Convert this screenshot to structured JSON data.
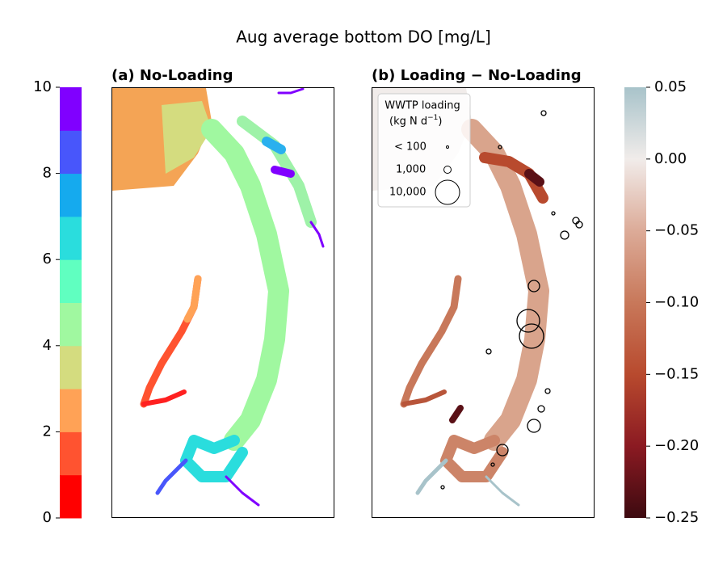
{
  "title": "Aug average bottom DO [mg/L]",
  "panels": [
    {
      "title": "(a) No-Loading"
    },
    {
      "title": "(b) Loading − No-Loading"
    }
  ],
  "legend": {
    "title": "WWTP loading",
    "units": "(kg N d",
    "units_exponent": "−1",
    "units_close": ")",
    "entries": [
      "< 100",
      "1,000",
      "10,000"
    ]
  },
  "colorbars": [
    {
      "lim": [
        0,
        10
      ],
      "ticks": [
        0,
        2,
        4,
        6,
        8,
        10
      ],
      "colors": [
        "#ff0000",
        "#ff5330",
        "#ffa256",
        "#d4dc7f",
        "#a0f8a0",
        "#60ffc0",
        "#2adddd",
        "#15aaee",
        "#4856fb",
        "#8000ff"
      ]
    },
    {
      "lim": [
        -0.25,
        0.05
      ],
      "ticks": [
        {
          "value": -0.25,
          "label": "−0.25"
        },
        {
          "value": -0.2,
          "label": "−0.20"
        },
        {
          "value": -0.15,
          "label": "−0.15"
        },
        {
          "value": -0.1,
          "label": "−0.10"
        },
        {
          "value": -0.05,
          "label": "−0.05"
        },
        {
          "value": 0,
          "label": "0.00"
        },
        0.05
      ],
      "colors": [
        "#3d0a10",
        "#8b1a22",
        "#b84a2e",
        "#c8785a",
        "#dcab98",
        "#f1ecea",
        "#a8c3ca"
      ]
    }
  ]
}
